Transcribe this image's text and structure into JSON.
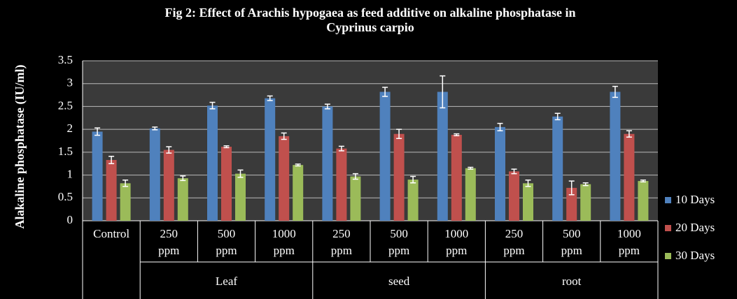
{
  "chart_data": {
    "type": "bar",
    "title": [
      "Fig 2: Effect of Arachis hypogaea as feed additive on alkaline phosphatase in",
      "Cyprinus carpio"
    ],
    "y_label": "Alakaline phosphatase (IU/ml)",
    "categories": [
      [
        "Control"
      ],
      [
        "250",
        "ppm"
      ],
      [
        "500",
        "ppm"
      ],
      [
        "1000",
        "ppm"
      ],
      [
        "250",
        "ppm"
      ],
      [
        "500",
        "ppm"
      ],
      [
        "1000",
        "ppm"
      ],
      [
        "250",
        "ppm"
      ],
      [
        "500",
        "ppm"
      ],
      [
        "1000",
        "ppm"
      ]
    ],
    "category_groups": [
      null,
      "Leaf",
      "Leaf",
      "Leaf",
      "seed",
      "seed",
      "seed",
      "root",
      "root",
      "root"
    ],
    "series": [
      {
        "name": "10 Days",
        "color": "#4f81bd",
        "values": [
          1.95,
          2.02,
          2.52,
          2.68,
          2.5,
          2.82,
          2.82,
          2.05,
          2.28,
          2.82
        ],
        "errors": [
          0.08,
          0.03,
          0.07,
          0.05,
          0.05,
          0.1,
          0.35,
          0.08,
          0.07,
          0.12
        ]
      },
      {
        "name": "20 Days",
        "color": "#c0504d",
        "values": [
          1.33,
          1.55,
          1.62,
          1.85,
          1.58,
          1.9,
          1.88,
          1.08,
          0.72,
          1.9
        ],
        "errors": [
          0.08,
          0.07,
          0.02,
          0.07,
          0.05,
          0.1,
          0.02,
          0.05,
          0.15,
          0.07
        ]
      },
      {
        "name": "30 Days",
        "color": "#9bbb59",
        "values": [
          0.82,
          0.93,
          1.03,
          1.22,
          0.97,
          0.9,
          1.15,
          0.82,
          0.8,
          0.87
        ],
        "errors": [
          0.07,
          0.05,
          0.08,
          0.02,
          0.06,
          0.07,
          0.02,
          0.07,
          0.03,
          0.02
        ]
      }
    ],
    "ylim": [
      0,
      3.5
    ],
    "yticks": [
      0,
      0.5,
      1,
      1.5,
      2,
      2.5,
      3,
      3.5
    ],
    "grid": true,
    "legend": "right"
  }
}
